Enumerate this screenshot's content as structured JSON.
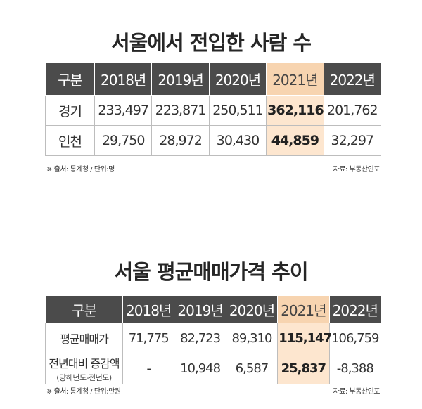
{
  "table1": {
    "title": "서울에서 전입한 사람 수",
    "headers": [
      "구분",
      "2018년",
      "2019년",
      "2020년",
      "2021년",
      "2022년"
    ],
    "rows": [
      {
        "label": "경기",
        "values": [
          "233,497",
          "223,871",
          "250,511",
          "362,116",
          "201,762"
        ]
      },
      {
        "label": "인천",
        "values": [
          "29,750",
          "28,972",
          "30,430",
          "44,859",
          "32,297"
        ]
      }
    ],
    "note": "※ 출처: 통계청 / 단위:명",
    "source": "자료: 부동산인포"
  },
  "table2": {
    "title": "서울 평균매매가격 추이",
    "headers": [
      "구분",
      "2018년",
      "2019년",
      "2020년",
      "2021년",
      "2022년"
    ],
    "rows": [
      {
        "label": "평균매매가",
        "values": [
          "71,775",
          "82,723",
          "89,310",
          "115,147",
          "106,759"
        ]
      },
      {
        "label": "전년대비 증감액",
        "sublabel": "(당해년도-전년도)",
        "values": [
          "-",
          "10,948",
          "6,587",
          "25,837",
          "-8,388"
        ]
      }
    ],
    "note": "※ 출처: 통계청 / 단위:만원",
    "source": "자료: 부동산인포"
  },
  "colors": {
    "header_bg": "#4b4b4b",
    "highlight_header": "#f7d4b0",
    "highlight_cell": "#fde6cf"
  }
}
